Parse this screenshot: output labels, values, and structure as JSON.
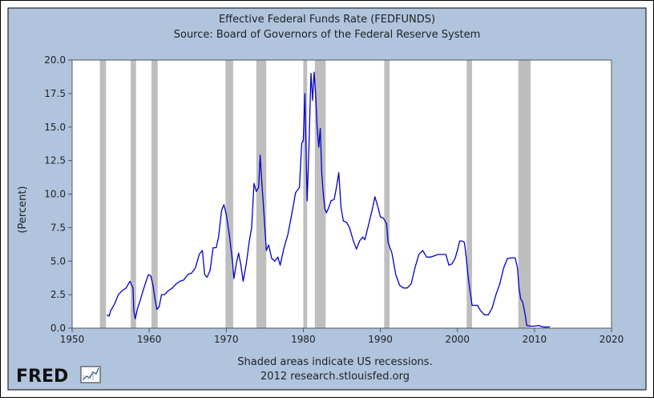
{
  "chart_data": {
    "type": "line",
    "title": "Effective Federal Funds Rate (FEDFUNDS)",
    "subtitle": "Source: Board of Governors of the Federal Reserve System",
    "xlabel": "",
    "ylabel": "(Percent)",
    "xlim": [
      1950,
      2020
    ],
    "ylim": [
      0,
      20
    ],
    "x_ticks": [
      "1950",
      "1960",
      "1970",
      "1980",
      "1990",
      "2000",
      "2010",
      "2020"
    ],
    "y_ticks": [
      "0.0",
      "2.5",
      "5.0",
      "7.5",
      "10.0",
      "12.5",
      "15.0",
      "17.5",
      "20.0"
    ],
    "recessions": [
      [
        1953.6,
        1954.4
      ],
      [
        1957.6,
        1958.3
      ],
      [
        1960.3,
        1961.1
      ],
      [
        1969.9,
        1970.9
      ],
      [
        1973.9,
        1975.2
      ],
      [
        1980.0,
        1980.5
      ],
      [
        1981.5,
        1982.9
      ],
      [
        1990.5,
        1991.2
      ],
      [
        2001.2,
        2001.9
      ],
      [
        2007.9,
        2009.5
      ]
    ],
    "series": [
      {
        "name": "FEDFUNDS",
        "color": "#0000cc",
        "x": [
          1954.5,
          1954.8,
          1955.0,
          1955.5,
          1956.0,
          1956.5,
          1957.0,
          1957.5,
          1957.9,
          1958.0,
          1958.2,
          1958.5,
          1958.8,
          1959.2,
          1959.6,
          1959.9,
          1960.2,
          1960.5,
          1960.8,
          1961.0,
          1961.3,
          1961.6,
          1962.0,
          1962.5,
          1963.0,
          1963.5,
          1964.0,
          1964.5,
          1965.0,
          1965.5,
          1966.0,
          1966.5,
          1966.9,
          1967.2,
          1967.5,
          1967.9,
          1968.3,
          1968.7,
          1969.0,
          1969.4,
          1969.7,
          1970.0,
          1970.4,
          1970.8,
          1971.0,
          1971.3,
          1971.6,
          1971.9,
          1972.2,
          1972.6,
          1973.0,
          1973.3,
          1973.6,
          1973.9,
          1974.2,
          1974.4,
          1974.6,
          1974.9,
          1975.2,
          1975.5,
          1975.9,
          1976.3,
          1976.7,
          1977.0,
          1977.5,
          1978.0,
          1978.5,
          1979.0,
          1979.5,
          1979.8,
          1980.0,
          1980.2,
          1980.5,
          1980.7,
          1981.0,
          1981.2,
          1981.4,
          1981.6,
          1981.8,
          1982.0,
          1982.2,
          1982.4,
          1982.6,
          1982.8,
          1983.0,
          1983.3,
          1983.6,
          1984.0,
          1984.3,
          1984.6,
          1984.9,
          1985.2,
          1985.6,
          1986.0,
          1986.5,
          1986.9,
          1987.3,
          1987.7,
          1988.0,
          1988.5,
          1989.0,
          1989.3,
          1989.7,
          1990.0,
          1990.4,
          1990.8,
          1991.0,
          1991.5,
          1992.0,
          1992.5,
          1993.0,
          1993.5,
          1994.0,
          1994.5,
          1995.0,
          1995.5,
          1996.0,
          1996.5,
          1997.0,
          1997.5,
          1998.0,
          1998.5,
          1998.9,
          1999.3,
          1999.7,
          2000.0,
          2000.3,
          2000.6,
          2000.9,
          2001.1,
          2001.4,
          2001.7,
          2001.9,
          2002.2,
          2002.6,
          2003.0,
          2003.5,
          2004.0,
          2004.5,
          2005.0,
          2005.5,
          2006.0,
          2006.5,
          2007.0,
          2007.5,
          2007.8,
          2008.0,
          2008.2,
          2008.5,
          2008.8,
          2009.0,
          2009.5,
          2010.0,
          2010.5,
          2011.0,
          2011.5,
          2012.0
        ],
        "values": [
          1.0,
          0.9,
          1.3,
          1.8,
          2.5,
          2.8,
          3.0,
          3.5,
          3.0,
          1.3,
          0.7,
          1.5,
          2.0,
          2.8,
          3.5,
          4.0,
          3.9,
          3.2,
          2.0,
          1.4,
          1.6,
          2.5,
          2.5,
          2.8,
          3.0,
          3.3,
          3.5,
          3.6,
          4.0,
          4.1,
          4.5,
          5.5,
          5.8,
          4.0,
          3.8,
          4.3,
          6.0,
          6.0,
          6.8,
          8.8,
          9.2,
          8.5,
          7.0,
          5.0,
          3.7,
          4.8,
          5.6,
          4.7,
          3.5,
          4.8,
          6.5,
          7.5,
          10.8,
          10.2,
          10.5,
          12.9,
          11.0,
          8.5,
          5.8,
          6.2,
          5.2,
          5.0,
          5.3,
          4.7,
          6.0,
          7.0,
          8.5,
          10.1,
          10.5,
          13.8,
          14.0,
          17.5,
          9.5,
          13.0,
          19.0,
          17.0,
          19.1,
          17.5,
          15.0,
          13.5,
          14.9,
          11.5,
          10.0,
          8.9,
          8.6,
          9.0,
          9.5,
          9.6,
          10.5,
          11.6,
          9.0,
          8.0,
          7.9,
          7.5,
          6.5,
          5.9,
          6.5,
          6.8,
          6.6,
          7.8,
          9.0,
          9.8,
          9.0,
          8.3,
          8.2,
          7.8,
          6.4,
          5.6,
          4.0,
          3.2,
          3.0,
          3.0,
          3.3,
          4.5,
          5.5,
          5.8,
          5.3,
          5.3,
          5.4,
          5.5,
          5.5,
          5.5,
          4.7,
          4.8,
          5.2,
          5.8,
          6.5,
          6.5,
          6.4,
          5.5,
          3.8,
          2.5,
          1.7,
          1.7,
          1.7,
          1.3,
          1.0,
          1.0,
          1.5,
          2.5,
          3.3,
          4.5,
          5.2,
          5.25,
          5.25,
          4.5,
          3.0,
          2.2,
          1.9,
          1.0,
          0.2,
          0.15,
          0.15,
          0.2,
          0.1,
          0.08,
          0.1
        ]
      }
    ]
  },
  "footer": {
    "note": "Shaded areas indicate US recessions.",
    "credit": "2012 research.stlouisfed.org",
    "logo_text": "FRED"
  },
  "colors": {
    "background": "#b0c4de",
    "plot_bg": "#ffffff",
    "recession": "#bebebe",
    "line": "#0000cc"
  }
}
